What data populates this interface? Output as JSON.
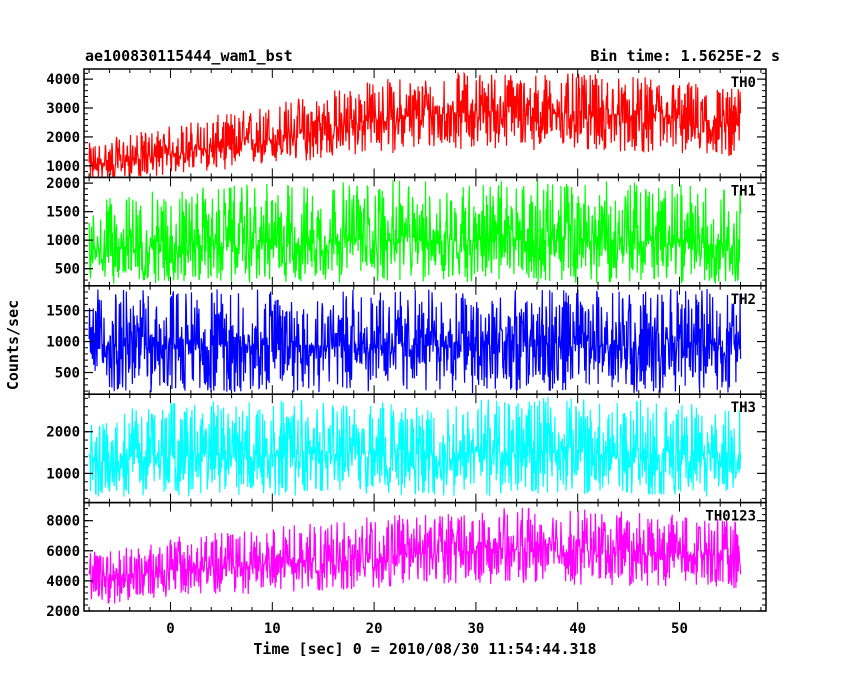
{
  "chart_data": {
    "type": "line",
    "title": "ae100830115444_wam1_bst",
    "subtitle": "Bin time: 1.5625E-2 s",
    "xlabel": "Time [sec] 0 = 2010/08/30 11:54:44.318",
    "ylabel": "Counts/sec",
    "xlim": [
      -8.5,
      58.5
    ],
    "data_xrange": [
      -8,
      56
    ],
    "xticks": [
      0,
      10,
      20,
      30,
      40,
      50
    ],
    "grid": false,
    "panels": [
      {
        "name": "TH0",
        "color": "#ff0000",
        "ylim": [
          600,
          4350
        ],
        "yticks": [
          1000,
          2000,
          3000,
          4000
        ],
        "x": [
          -8,
          0,
          10,
          20,
          30,
          40,
          50,
          56
        ],
        "mean": [
          1000,
          1400,
          1900,
          2600,
          2900,
          2800,
          2600,
          2400
        ],
        "low": [
          400,
          700,
          1000,
          1400,
          1600,
          1500,
          1400,
          1300
        ],
        "high": [
          1800,
          2400,
          3200,
          4000,
          4300,
          4200,
          4000,
          3700
        ]
      },
      {
        "name": "TH1",
        "color": "#00ff00",
        "ylim": [
          200,
          2100
        ],
        "yticks": [
          500,
          1000,
          1500,
          2000
        ],
        "x": [
          -8,
          0,
          10,
          20,
          30,
          40,
          50,
          56
        ],
        "mean": [
          850,
          900,
          950,
          1000,
          1000,
          1000,
          950,
          900
        ],
        "low": [
          230,
          240,
          250,
          250,
          250,
          250,
          240,
          230
        ],
        "high": [
          1700,
          1900,
          2000,
          2050,
          2050,
          2050,
          2000,
          1900
        ]
      },
      {
        "name": "TH2",
        "color": "#0000ff",
        "ylim": [
          150,
          1900
        ],
        "yticks": [
          500,
          1000,
          1500
        ],
        "x": [
          -8,
          0,
          10,
          20,
          30,
          40,
          50,
          56
        ],
        "mean": [
          950,
          950,
          950,
          950,
          950,
          950,
          950,
          950
        ],
        "low": [
          170,
          170,
          170,
          170,
          170,
          170,
          170,
          170
        ],
        "high": [
          1850,
          1850,
          1850,
          1850,
          1850,
          1850,
          1850,
          1850
        ]
      },
      {
        "name": "TH3",
        "color": "#00ffff",
        "ylim": [
          300,
          2900
        ],
        "yticks": [
          1000,
          2000
        ],
        "x": [
          -8,
          0,
          10,
          20,
          30,
          40,
          50,
          56
        ],
        "mean": [
          1400,
          1450,
          1450,
          1500,
          1500,
          1500,
          1450,
          1400
        ],
        "low": [
          400,
          450,
          450,
          450,
          450,
          450,
          450,
          400
        ],
        "high": [
          2500,
          2700,
          2800,
          2850,
          2850,
          2850,
          2750,
          2600
        ]
      },
      {
        "name": "TH0123",
        "color": "#ff00ff",
        "ylim": [
          2000,
          9200
        ],
        "yticks": [
          2000,
          4000,
          6000,
          8000
        ],
        "x": [
          -8,
          0,
          10,
          20,
          30,
          40,
          50,
          56
        ],
        "mean": [
          4200,
          4700,
          5100,
          5500,
          6100,
          6000,
          5800,
          5700
        ],
        "low": [
          2200,
          2900,
          3200,
          3500,
          3800,
          3700,
          3600,
          3500
        ],
        "high": [
          6000,
          6900,
          7600,
          8300,
          8900,
          8800,
          8400,
          8000
        ]
      }
    ]
  }
}
